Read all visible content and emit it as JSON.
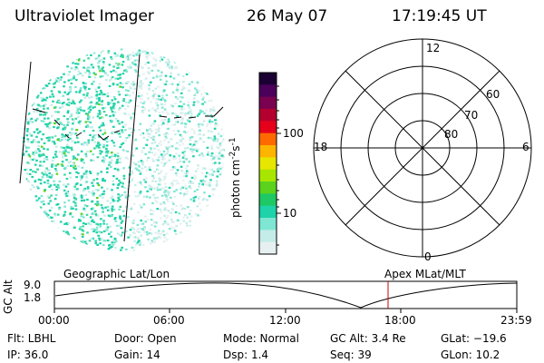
{
  "header": {
    "title": "Ultraviolet Imager",
    "date": "26 May 07",
    "time": "17:19:45 UT"
  },
  "colorbar": {
    "unit_label": "photon cm",
    "unit_sup1": "-2",
    "unit_mid": "s",
    "unit_sup2": "-1",
    "ticks": [
      "100",
      "10"
    ],
    "colors": [
      "#1a0033",
      "#4b005b",
      "#7a0050",
      "#b4002f",
      "#e6001a",
      "#ff6a00",
      "#ffb400",
      "#e6e600",
      "#a8e600",
      "#5ad21e",
      "#1ec864",
      "#1ed2aa",
      "#7ee6d2",
      "#c4ece8",
      "#e6f0f0"
    ]
  },
  "polar_grid": {
    "mlt_labels": {
      "top": "12",
      "right": "6",
      "bottom": "0",
      "left": "18"
    },
    "lat_labels": [
      "60",
      "70",
      "80"
    ]
  },
  "timeline": {
    "left_label": "Geographic Lat/Lon",
    "right_label": "Apex MLat/MLT",
    "y_axis_label": "GC Alt",
    "y_ticks": [
      "9.0",
      "1.8"
    ],
    "x_ticks": [
      "00:00",
      "06:00",
      "12:00",
      "18:00",
      "23:59"
    ],
    "marker_color": "#cc0000",
    "curve_color": "#000000"
  },
  "info": {
    "flt": "Flt: LBHL",
    "ip": "IP: 36.0",
    "door": "Door: Open",
    "gain": "Gain: 14",
    "mode": "Mode: Normal",
    "dsp": "Dsp:    1.4",
    "gc_alt": "GC Alt: 3.4 Re",
    "seq": "Seq: 39",
    "glat": "GLat: −19.6",
    "glon": "GLon:  10.2"
  }
}
